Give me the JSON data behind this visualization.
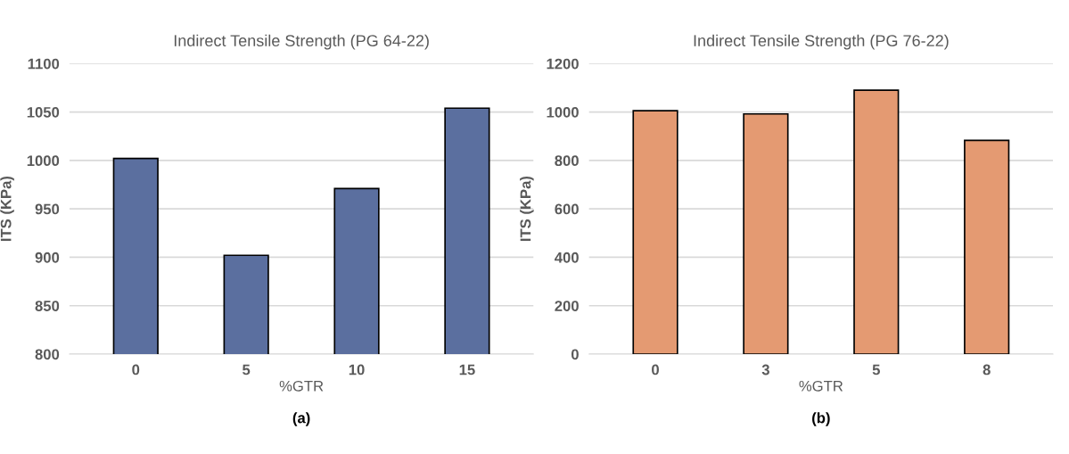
{
  "chart_data": [
    {
      "type": "bar",
      "title": "Indirect Tensile Strength (PG 64-22)",
      "xlabel": "%GTR",
      "ylabel": "ITS (KPa)",
      "categories": [
        "0",
        "5",
        "10",
        "15"
      ],
      "values": [
        1002,
        902,
        971,
        1054
      ],
      "color": "#5b6f9f",
      "ylim": [
        800,
        1100
      ],
      "yticks": [
        800,
        850,
        900,
        950,
        1000,
        1050,
        1100
      ],
      "grid": "y",
      "annotations": [
        "(a)"
      ]
    },
    {
      "type": "bar",
      "title": "Indirect Tensile Strength (PG 76-22)",
      "xlabel": "%GTR",
      "ylabel": "ITS (KPa)",
      "categories": [
        "0",
        "3",
        "5",
        "8"
      ],
      "values": [
        1005,
        992,
        1090,
        883
      ],
      "color": "#e49a72",
      "ylim": [
        0,
        1200
      ],
      "yticks": [
        0,
        200,
        400,
        600,
        800,
        1000,
        1200
      ],
      "grid": "y",
      "annotations": [
        "(b)"
      ]
    }
  ]
}
